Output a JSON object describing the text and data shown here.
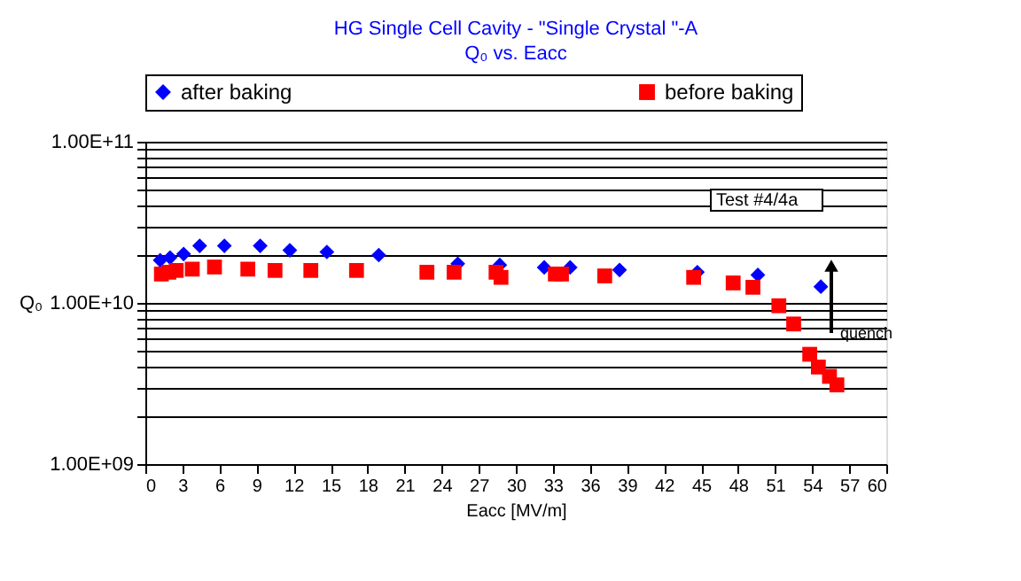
{
  "chart_data": {
    "type": "scatter",
    "title": "HG Single Cell Cavity - \"Single Crystal \"-A",
    "subtitle": "Q₀ vs. Eacc",
    "xlabel": "Eacc [MV/m]",
    "ylabel": "Q₀",
    "series": [
      {
        "name": "after  baking",
        "color": "#0000ff",
        "marker": "diamond",
        "x": [
          1.2,
          2.0,
          3.1,
          4.4,
          6.4,
          9.3,
          11.7,
          14.7,
          18.9,
          25.3,
          28.7,
          32.3,
          34.4,
          38.4,
          44.7,
          49.6,
          54.7
        ],
        "values": [
          18400000000.0,
          19100000000.0,
          20100000000.0,
          22600000000.0,
          22600000000.0,
          22600000000.0,
          21200000000.0,
          20700000000.0,
          19800000000.0,
          17500000000.0,
          17200000000.0,
          16600000000.0,
          16600000000.0,
          16000000000.0,
          15500000000.0,
          14900000000.0,
          12600000000.0
        ]
      },
      {
        "name": "before baking",
        "color": "#ff0000",
        "marker": "square",
        "x": [
          1.3,
          1.9,
          2.5,
          3.8,
          5.6,
          8.3,
          10.5,
          13.4,
          17.1,
          22.8,
          25.0,
          28.4,
          28.8,
          33.2,
          33.7,
          37.2,
          44.4,
          47.6,
          49.2,
          51.3,
          52.5,
          53.8,
          54.5,
          55.4,
          56.0
        ],
        "values": [
          15100000000.0,
          15500000000.0,
          15900000000.0,
          16200000000.0,
          16700000000.0,
          16200000000.0,
          15900000000.0,
          15900000000.0,
          15900000000.0,
          15500000000.0,
          15500000000.0,
          15500000000.0,
          14400000000.0,
          15100000000.0,
          15100000000.0,
          14700000000.0,
          14400000000.0,
          13300000000.0,
          12500000000.0,
          9600000000.0,
          7400000000.0,
          4800000000.0,
          4000000000.0,
          3500000000.0,
          3100000000.0
        ]
      }
    ],
    "log": "y",
    "xlim": [
      0,
      60
    ],
    "xticks": [
      0,
      3,
      6,
      9,
      12,
      15,
      18,
      21,
      24,
      27,
      30,
      33,
      36,
      39,
      42,
      45,
      48,
      51,
      54,
      57,
      60
    ],
    "ylim": [
      1000000000.0,
      100000000000.0
    ],
    "yticks": [
      {
        "value": 1000000000.0,
        "label": "1.00E+09"
      },
      {
        "value": 2000000000.0,
        "label": null
      },
      {
        "value": 3000000000.0,
        "label": null
      },
      {
        "value": 4000000000.0,
        "label": null
      },
      {
        "value": 5000000000.0,
        "label": null
      },
      {
        "value": 6000000000.0,
        "label": null
      },
      {
        "value": 7000000000.0,
        "label": null
      },
      {
        "value": 8000000000.0,
        "label": null
      },
      {
        "value": 9000000000.0,
        "label": null
      },
      {
        "value": 10000000000.0,
        "label": "1.00E+10"
      },
      {
        "value": 20000000000.0,
        "label": null
      },
      {
        "value": 30000000000.0,
        "label": null
      },
      {
        "value": 40000000000.0,
        "label": null
      },
      {
        "value": 50000000000.0,
        "label": null
      },
      {
        "value": 60000000000.0,
        "label": null
      },
      {
        "value": 70000000000.0,
        "label": null
      },
      {
        "value": 80000000000.0,
        "label": null
      },
      {
        "value": 90000000000.0,
        "label": null
      },
      {
        "value": 100000000000.0,
        "label": "1.00E+11"
      }
    ],
    "grid": "y",
    "legend": "top",
    "annotations": [
      "Test #4/4a",
      "quench"
    ]
  }
}
